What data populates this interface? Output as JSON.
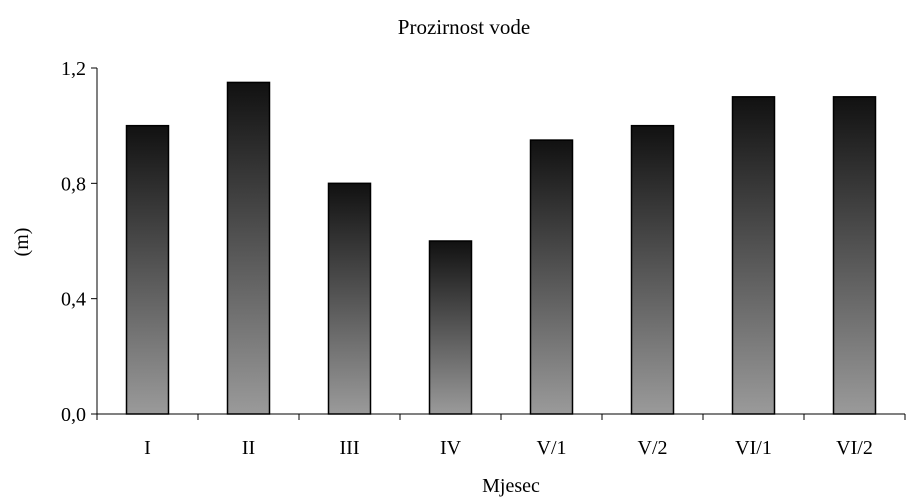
{
  "chart_data": {
    "type": "bar",
    "title": "Prozirnost vode",
    "xlabel": "Mjesec",
    "ylabel": "(m)",
    "categories": [
      "I",
      "II",
      "III",
      "IV",
      "V/1",
      "V/2",
      "VI/1",
      "VI/2"
    ],
    "values": [
      1.0,
      1.15,
      0.8,
      0.6,
      0.95,
      1.0,
      1.1,
      1.1
    ],
    "ylim": [
      0,
      1.2
    ],
    "yticks": [
      "0,0",
      "0,4",
      "0,8",
      "1,2"
    ],
    "ytick_values": [
      0,
      0.4,
      0.8,
      1.2
    ],
    "grid": false,
    "legend": "none",
    "bar_gradient": {
      "top": "#111111",
      "bottom": "#9a9a9a"
    }
  }
}
